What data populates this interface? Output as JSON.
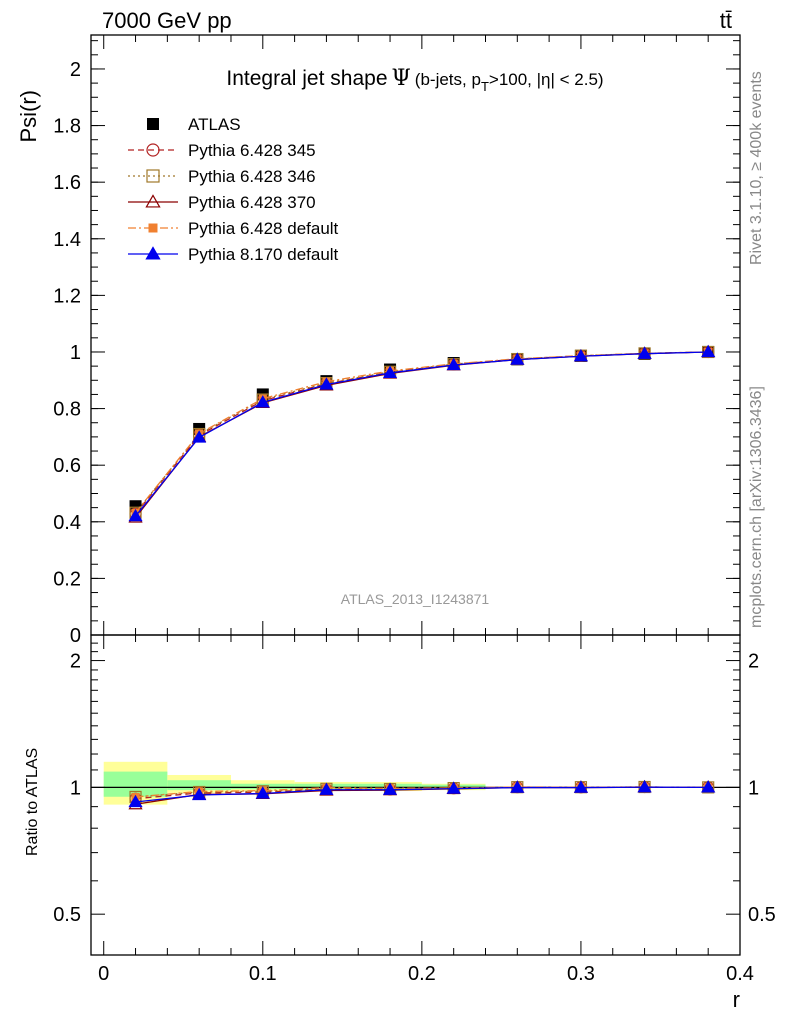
{
  "header": {
    "energy_label": "7000 GeV pp",
    "process_label": "tt̄"
  },
  "side_labels": {
    "rivet": "Rivet 3.1.10, ≥ 400k events",
    "mcplots": "mcplots.cern.ch [arXiv:1306.3436]"
  },
  "chart_data": [
    {
      "type": "line",
      "title": {
        "main": "Integral jet shape",
        "symbol": "Ψ",
        "cut_open": "(b-jets, p",
        "cut_sub": "T",
        "cut_close": ">100, |η| < 2.5)"
      },
      "watermark": "ATLAS_2013_I1243871",
      "ylabel": "Psi(r)",
      "xlabel": "r",
      "xlim": [
        -0.008,
        0.4
      ],
      "ylim": [
        0,
        2.12
      ],
      "x_ticks": [
        0,
        0.1,
        0.2,
        0.3,
        0.4
      ],
      "x_tick_labels": [
        "0",
        "0.1",
        "0.2",
        "0.3",
        "0.4"
      ],
      "y_ticks": [
        0,
        0.2,
        0.4,
        0.6,
        0.8,
        1.0,
        1.2,
        1.4,
        1.6,
        1.8,
        2.0
      ],
      "y_tick_labels": [
        "0",
        "0.2",
        "0.4",
        "0.6",
        "0.8",
        "1",
        "1.2",
        "1.4",
        "1.6",
        "1.8",
        "2"
      ],
      "x": [
        0.02,
        0.06,
        0.1,
        0.14,
        0.18,
        0.22,
        0.26,
        0.3,
        0.34,
        0.38
      ],
      "bin_edges": [
        0.0,
        0.04,
        0.08,
        0.12,
        0.16,
        0.2,
        0.24,
        0.28,
        0.32,
        0.36,
        0.4
      ],
      "legend_position": "top-left",
      "series": [
        {
          "name": "ATLAS",
          "color": "#000000",
          "marker": "square-filled",
          "line": "none",
          "values": [
            0.455,
            0.728,
            0.85,
            0.897,
            0.938,
            0.961,
            0.974,
            0.986,
            0.993,
            1.0
          ]
        },
        {
          "name": "Pythia 6.428 345",
          "color": "#b22222",
          "marker": "circle-open",
          "line": "dashed",
          "values": [
            0.428,
            0.706,
            0.828,
            0.888,
            0.928,
            0.956,
            0.975,
            0.986,
            0.995,
            1.0
          ]
        },
        {
          "name": "Pythia 6.428 346",
          "color": "#a0782a",
          "marker": "square-open",
          "line": "dotted",
          "values": [
            0.432,
            0.71,
            0.832,
            0.89,
            0.93,
            0.957,
            0.975,
            0.987,
            0.995,
            1.0
          ]
        },
        {
          "name": "Pythia 6.428 370",
          "color": "#8b0000",
          "marker": "triangle-open",
          "line": "solid",
          "values": [
            0.415,
            0.7,
            0.82,
            0.882,
            0.924,
            0.953,
            0.973,
            0.985,
            0.994,
            1.0
          ]
        },
        {
          "name": "Pythia 6.428 default",
          "color": "#f08030",
          "marker": "square-filled-small",
          "line": "dashdot",
          "values": [
            0.432,
            0.712,
            0.835,
            0.895,
            0.933,
            0.958,
            0.976,
            0.987,
            0.995,
            1.0
          ]
        },
        {
          "name": "Pythia 8.170 default",
          "color": "#0000ee",
          "marker": "triangle-filled",
          "line": "solid",
          "values": [
            0.42,
            0.698,
            0.822,
            0.885,
            0.926,
            0.954,
            0.973,
            0.985,
            0.994,
            1.0
          ]
        }
      ]
    },
    {
      "type": "line",
      "ylabel": "Ratio to ATLAS",
      "xlabel": "r",
      "xlim": [
        -0.008,
        0.4
      ],
      "ylim": [
        0.4,
        2.3
      ],
      "y_scale": "log",
      "y_ticks": [
        0.5,
        1,
        2
      ],
      "y_tick_labels": [
        "0.5",
        "1",
        "2"
      ],
      "x_ticks": [
        0,
        0.1,
        0.2,
        0.3,
        0.4
      ],
      "x_tick_labels": [
        "0",
        "0.1",
        "0.2",
        "0.3",
        "0.4"
      ],
      "x": [
        0.02,
        0.06,
        0.1,
        0.14,
        0.18,
        0.22,
        0.26,
        0.3,
        0.34,
        0.38
      ],
      "bin_edges": [
        0.0,
        0.04,
        0.08,
        0.12,
        0.16,
        0.2,
        0.24,
        0.28,
        0.32,
        0.36,
        0.4
      ],
      "uncertainty_bands": {
        "yellow_color": "#ffff99",
        "green_color": "#99ff99",
        "yellow_low": [
          0.91,
          0.97,
          0.98,
          0.98,
          0.98,
          0.985,
          1.0,
          1.0,
          1.0,
          1.0
        ],
        "yellow_high": [
          1.15,
          1.07,
          1.04,
          1.03,
          1.03,
          1.02,
          1.0,
          1.0,
          1.0,
          1.0
        ],
        "green_low": [
          0.95,
          0.985,
          0.99,
          0.99,
          0.99,
          0.99,
          1.0,
          1.0,
          1.0,
          1.0
        ],
        "green_high": [
          1.09,
          1.04,
          1.02,
          1.02,
          1.02,
          1.015,
          1.0,
          1.0,
          1.0,
          1.0
        ]
      },
      "series": [
        {
          "name": "Pythia 6.428 345",
          "color": "#b22222",
          "marker": "circle-open",
          "line": "dashed",
          "values": [
            0.94,
            0.97,
            0.974,
            0.99,
            0.989,
            0.995,
            1.001,
            1.0,
            1.002,
            1.0
          ]
        },
        {
          "name": "Pythia 6.428 346",
          "color": "#a0782a",
          "marker": "square-open",
          "line": "dotted",
          "values": [
            0.949,
            0.975,
            0.979,
            0.992,
            0.991,
            0.996,
            1.001,
            1.001,
            1.002,
            1.0
          ]
        },
        {
          "name": "Pythia 6.428 370",
          "color": "#8b0000",
          "marker": "triangle-open",
          "line": "solid",
          "values": [
            0.912,
            0.962,
            0.965,
            0.983,
            0.985,
            0.992,
            0.999,
            0.999,
            1.001,
            1.0
          ]
        },
        {
          "name": "Pythia 6.428 default",
          "color": "#f08030",
          "marker": "square-filled-small",
          "line": "dashdot",
          "values": [
            0.949,
            0.978,
            0.982,
            0.998,
            0.995,
            0.997,
            1.002,
            1.001,
            1.002,
            1.0
          ]
        },
        {
          "name": "Pythia 8.170 default",
          "color": "#0000ee",
          "marker": "triangle-filled",
          "line": "solid",
          "values": [
            0.923,
            0.959,
            0.967,
            0.987,
            0.987,
            0.993,
            0.999,
            0.999,
            1.001,
            1.0
          ]
        }
      ]
    }
  ]
}
